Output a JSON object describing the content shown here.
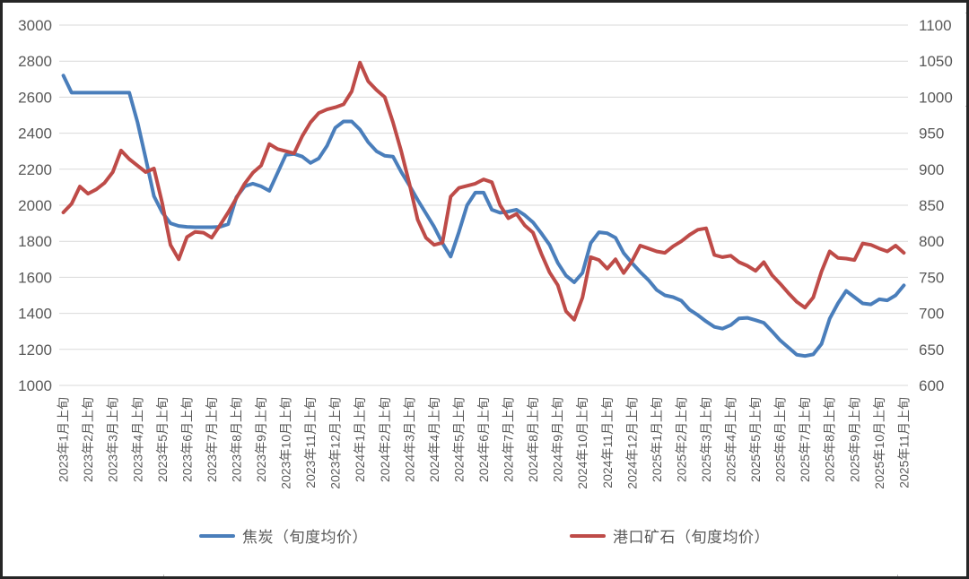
{
  "chart_data": {
    "type": "line",
    "x_unit": "旬 (10-day period), 3 points per month",
    "x_month_labels": [
      "2023年1月上旬",
      "2023年2月上旬",
      "2023年3月上旬",
      "2023年4月上旬",
      "2023年5月上旬",
      "2023年6月上旬",
      "2023年7月上旬",
      "2023年8月上旬",
      "2023年9月上旬",
      "2023年10月上旬",
      "2023年11月上旬",
      "2023年12月上旬",
      "2024年1月上旬",
      "2024年2月上旬",
      "2024年3月上旬",
      "2024年4月上旬",
      "2024年5月上旬",
      "2024年6月上旬",
      "2024年7月上旬",
      "2024年8月上旬",
      "2024年9月上旬",
      "2024年10月上旬",
      "2024年11月上旬",
      "2024年12月上旬",
      "2025年1月上旬",
      "2025年2月上旬",
      "2025年3月上旬",
      "2025年4月上旬",
      "2025年5月上旬",
      "2025年6月上旬",
      "2025年7月上旬",
      "2025年8月上旬",
      "2025年9月上旬",
      "2025年10月上旬",
      "2025年11月上旬"
    ],
    "left_axis": {
      "ticks": [
        3000,
        2800,
        2600,
        2400,
        2200,
        2000,
        1800,
        1600,
        1400,
        1200,
        1000
      ],
      "ylim": [
        1000,
        3000
      ]
    },
    "right_axis": {
      "ticks": [
        1100,
        1050,
        1000,
        950,
        900,
        850,
        800,
        750,
        700,
        650,
        600
      ],
      "ylim": [
        600,
        1100
      ]
    },
    "grid": "horizontal only",
    "legend_position": "bottom center",
    "series": [
      {
        "name": "焦炭（旬度均价）",
        "axis": "left",
        "color": "#4a7ebb",
        "values": [
          2720,
          2625,
          2625,
          2625,
          2625,
          2625,
          2625,
          2625,
          2625,
          2460,
          2260,
          2050,
          1960,
          1900,
          1885,
          1880,
          1878,
          1878,
          1878,
          1880,
          1895,
          2045,
          2105,
          2120,
          2105,
          2080,
          2180,
          2280,
          2285,
          2270,
          2235,
          2260,
          2330,
          2430,
          2465,
          2465,
          2420,
          2350,
          2300,
          2275,
          2270,
          2185,
          2110,
          2030,
          1955,
          1880,
          1790,
          1715,
          1850,
          2000,
          2070,
          2070,
          1975,
          1958,
          1965,
          1975,
          1945,
          1905,
          1845,
          1780,
          1680,
          1610,
          1572,
          1625,
          1790,
          1850,
          1845,
          1820,
          1735,
          1680,
          1630,
          1585,
          1530,
          1500,
          1490,
          1470,
          1420,
          1390,
          1355,
          1325,
          1315,
          1335,
          1372,
          1375,
          1362,
          1348,
          1300,
          1250,
          1210,
          1170,
          1163,
          1172,
          1230,
          1370,
          1455,
          1525,
          1490,
          1455,
          1450,
          1478,
          1472,
          1500,
          1555
        ]
      },
      {
        "name": "港口矿石（旬度均价）",
        "axis": "right",
        "color": "#be4b48",
        "values": [
          840,
          852,
          876,
          866,
          872,
          881,
          896,
          926,
          914,
          905,
          896,
          901,
          853,
          795,
          775,
          806,
          813,
          812,
          805,
          822,
          840,
          860,
          880,
          895,
          905,
          935,
          928,
          925,
          922,
          946,
          965,
          978,
          983,
          986,
          990,
          1008,
          1048,
          1022,
          1010,
          1000,
          965,
          925,
          880,
          830,
          805,
          795,
          798,
          862,
          874,
          877,
          880,
          886,
          882,
          850,
          832,
          838,
          822,
          812,
          783,
          757,
          739,
          703,
          691,
          722,
          778,
          774,
          762,
          775,
          756,
          772,
          794,
          790,
          786,
          784,
          793,
          800,
          809,
          816,
          818,
          781,
          778,
          780,
          771,
          766,
          759,
          771,
          753,
          741,
          728,
          716,
          708,
          722,
          758,
          786,
          777,
          776,
          774,
          797,
          795,
          790,
          786,
          794,
          784
        ]
      }
    ]
  },
  "legend": {
    "items": [
      {
        "label": "焦炭（旬度均价）",
        "color": "#4a7ebb"
      },
      {
        "label": "港口矿石（旬度均价）",
        "color": "#be4b48"
      }
    ]
  },
  "colors": {
    "grid": "#d9d9d9",
    "axis_text": "#595959",
    "frame": "#262626",
    "background": "#ffffff"
  }
}
